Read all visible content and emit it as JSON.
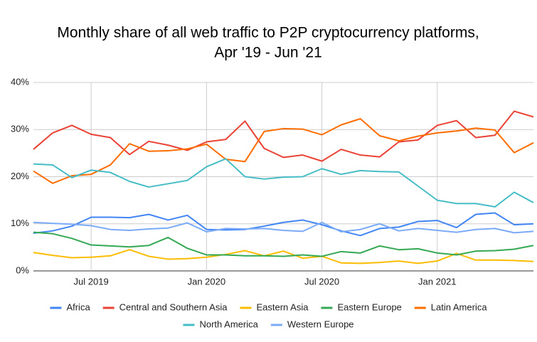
{
  "chart_data": {
    "type": "line",
    "title": [
      "Monthly share of all web traffic to P2P cryptocurrency platforms,",
      "Apr '19 - Jun '21"
    ],
    "x": [
      "2019-04",
      "2019-05",
      "2019-06",
      "2019-07",
      "2019-08",
      "2019-09",
      "2019-10",
      "2019-11",
      "2019-12",
      "2020-01",
      "2020-02",
      "2020-03",
      "2020-04",
      "2020-05",
      "2020-06",
      "2020-07",
      "2020-08",
      "2020-09",
      "2020-10",
      "2020-11",
      "2020-12",
      "2021-01",
      "2021-02",
      "2021-03",
      "2021-04",
      "2021-05",
      "2021-06"
    ],
    "xlim": [
      "2019-04",
      "2021-06"
    ],
    "xticks": [
      {
        "value": "2019-07",
        "label": "Jul 2019"
      },
      {
        "value": "2020-01",
        "label": "Jan 2020"
      },
      {
        "value": "2020-07",
        "label": "Jul 2020"
      },
      {
        "value": "2021-01",
        "label": "Jan 2021"
      }
    ],
    "ylim": [
      0,
      40
    ],
    "yticks": [
      {
        "value": 0,
        "label": "0%"
      },
      {
        "value": 10,
        "label": "10%"
      },
      {
        "value": 20,
        "label": "20%"
      },
      {
        "value": 30,
        "label": "30%"
      },
      {
        "value": 40,
        "label": "40%"
      }
    ],
    "grid": true,
    "legend": "bottom",
    "series": [
      {
        "name": "Africa",
        "color": "#4285f4",
        "values": [
          8,
          8.5,
          9.5,
          11.4,
          11.4,
          11.3,
          12,
          10.8,
          11.8,
          8.8,
          8.7,
          8.8,
          9.5,
          10.3,
          10.8,
          9.8,
          8.5,
          7.5,
          9,
          9.3,
          10.5,
          10.7,
          9.2,
          12,
          12.3,
          9.8,
          10
        ]
      },
      {
        "name": "Central and Southern Asia",
        "color": "#ea4335",
        "values": [
          25.8,
          29.3,
          30.9,
          29,
          28.3,
          24.7,
          27.5,
          26.7,
          25.6,
          27.4,
          27.9,
          31.8,
          26,
          24.1,
          24.6,
          23.3,
          25.8,
          24.6,
          24.2,
          27.4,
          27.8,
          30.9,
          31.9,
          28.3,
          28.8,
          33.9,
          32.7
        ]
      },
      {
        "name": "Eastern Asia",
        "color": "#fbbc04",
        "values": [
          3.9,
          3.3,
          2.8,
          2.9,
          3.2,
          4.5,
          3.1,
          2.5,
          2.6,
          2.9,
          3.5,
          4.3,
          3.2,
          4.2,
          2.7,
          3.1,
          1.7,
          1.6,
          1.8,
          2.1,
          1.6,
          2.1,
          3.7,
          2.3,
          2.3,
          2.2,
          2
        ]
      },
      {
        "name": "Eastern Europe",
        "color": "#34a853",
        "values": [
          8.2,
          7.9,
          6.9,
          5.5,
          5.3,
          5.1,
          5.4,
          7.1,
          4.8,
          3.4,
          3.4,
          3.2,
          3.2,
          3.1,
          3.4,
          3.1,
          4.1,
          3.8,
          5.3,
          4.5,
          4.7,
          3.8,
          3.4,
          4.2,
          4.3,
          4.6,
          5.4
        ]
      },
      {
        "name": "Latin America",
        "color": "#ff6d01",
        "values": [
          21.2,
          18.6,
          20.2,
          20.5,
          22.5,
          27,
          25.4,
          25.5,
          25.9,
          26.9,
          23.7,
          23.2,
          29.6,
          30.2,
          30.1,
          28.9,
          31,
          32.3,
          28.7,
          27.6,
          28.6,
          29.3,
          29.7,
          30.3,
          29.9,
          25.1,
          27.2
        ]
      },
      {
        "name": "North America",
        "color": "#46bdc6",
        "values": [
          22.7,
          22.5,
          19.8,
          21.4,
          20.9,
          19,
          17.8,
          18.5,
          19.2,
          22.1,
          23.8,
          20,
          19.5,
          19.9,
          20,
          21.7,
          20.5,
          21.3,
          21.1,
          21,
          18,
          15,
          14.3,
          14.3,
          13.6,
          16.7,
          14.5
        ]
      },
      {
        "name": "Western Europe",
        "color": "#7baaf7",
        "values": [
          10.3,
          10.1,
          9.9,
          9.6,
          8.8,
          8.6,
          8.9,
          9.1,
          10.2,
          8.3,
          9,
          8.9,
          9,
          8.6,
          8.4,
          10.3,
          8.3,
          8.8,
          10,
          8.5,
          9,
          8.6,
          8.2,
          8.8,
          9,
          8.1,
          8.4
        ]
      }
    ]
  }
}
